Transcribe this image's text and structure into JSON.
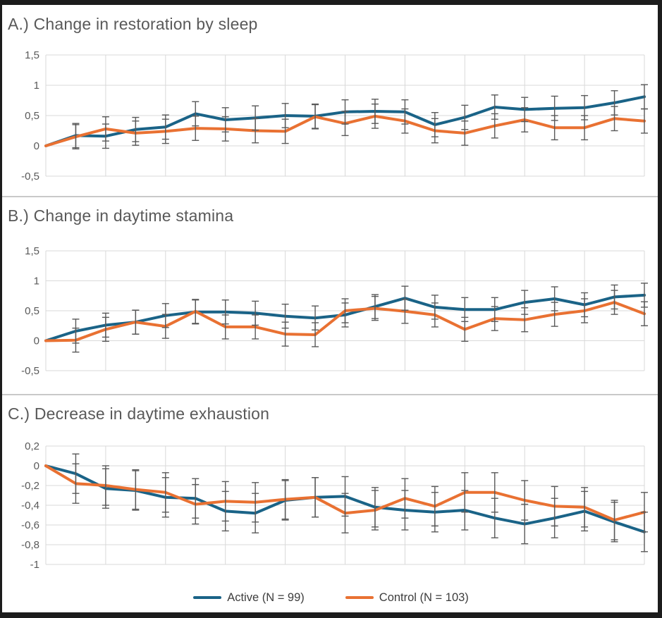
{
  "figure": {
    "background": "#ffffff",
    "frame_border_color": "#1c1c1c",
    "divider_color": "#c9c9c9"
  },
  "palette": {
    "active": "#1A6387",
    "control": "#E97132",
    "error_bar": "#595959",
    "gridline": "#d9d9d9",
    "tick_label": "#595959",
    "title": "#595959",
    "legend_text": "#3d3d3d"
  },
  "legend": {
    "items": [
      {
        "key": "active",
        "label": "Active (N = 99)"
      },
      {
        "key": "control",
        "label": "Control (N = 103)"
      }
    ]
  },
  "chart_data": [
    {
      "id": "A",
      "type": "line",
      "title": "A.) Change in restoration by sleep",
      "n_points": 21,
      "x_tick_labels": "none",
      "x_gridline_every_n_points": 2,
      "ylim": [
        -0.5,
        1.5
      ],
      "yticks": [
        {
          "v": 1.5,
          "label": "1,5"
        },
        {
          "v": 1.0,
          "label": "1"
        },
        {
          "v": 0.5,
          "label": "0,5"
        },
        {
          "v": 0.0,
          "label": "0"
        },
        {
          "v": -0.5,
          "label": "-0,5"
        }
      ],
      "error_bars": {
        "halfwidth": 0.2,
        "on_first_point": false
      },
      "series": [
        {
          "name": "Active (N = 99)",
          "color_key": "active",
          "values": [
            0,
            0.17,
            0.16,
            0.27,
            0.31,
            0.53,
            0.43,
            0.46,
            0.5,
            0.49,
            0.56,
            0.57,
            0.56,
            0.35,
            0.47,
            0.64,
            0.6,
            0.62,
            0.63,
            0.71,
            0.81
          ]
        },
        {
          "name": "Control (N = 103)",
          "color_key": "control",
          "values": [
            0,
            0.15,
            0.28,
            0.21,
            0.24,
            0.29,
            0.28,
            0.25,
            0.24,
            0.48,
            0.37,
            0.49,
            0.41,
            0.25,
            0.21,
            0.33,
            0.43,
            0.3,
            0.3,
            0.45,
            0.41
          ]
        }
      ]
    },
    {
      "id": "B",
      "type": "line",
      "title": "B.) Change in daytime stamina",
      "n_points": 21,
      "x_tick_labels": "none",
      "x_gridline_every_n_points": 2,
      "ylim": [
        -0.5,
        1.5
      ],
      "yticks": [
        {
          "v": 1.5,
          "label": "1,5"
        },
        {
          "v": 1.0,
          "label": "1"
        },
        {
          "v": 0.5,
          "label": "0,5"
        },
        {
          "v": 0.0,
          "label": "0"
        },
        {
          "v": -0.5,
          "label": "-0,5"
        }
      ],
      "error_bars": {
        "halfwidth": 0.2,
        "on_first_point": false
      },
      "series": [
        {
          "name": "Active (N = 99)",
          "color_key": "active",
          "values": [
            0,
            0.16,
            0.26,
            0.31,
            0.42,
            0.48,
            0.48,
            0.46,
            0.41,
            0.38,
            0.43,
            0.57,
            0.71,
            0.56,
            0.52,
            0.52,
            0.64,
            0.7,
            0.6,
            0.73,
            0.76
          ]
        },
        {
          "name": "Control (N = 103)",
          "color_key": "control",
          "values": [
            0,
            0.01,
            0.19,
            0.31,
            0.24,
            0.49,
            0.23,
            0.23,
            0.11,
            0.1,
            0.5,
            0.54,
            0.49,
            0.43,
            0.19,
            0.37,
            0.35,
            0.44,
            0.5,
            0.64,
            0.45
          ]
        }
      ]
    },
    {
      "id": "C",
      "type": "line",
      "title": "C.) Decrease in daytime exhaustion",
      "n_points": 21,
      "x_tick_labels": "none",
      "x_gridline_every_n_points": 2,
      "ylim": [
        -1.0,
        0.2
      ],
      "yticks": [
        {
          "v": 0.2,
          "label": "0,2"
        },
        {
          "v": 0.0,
          "label": "0"
        },
        {
          "v": -0.2,
          "label": "-0,2"
        },
        {
          "v": -0.4,
          "label": "-0,4"
        },
        {
          "v": -0.6,
          "label": "-0,6"
        },
        {
          "v": -0.8,
          "label": "-0,8"
        },
        {
          "v": -1.0,
          "label": "-1"
        }
      ],
      "error_bars": {
        "halfwidth": 0.2,
        "on_first_point": false
      },
      "series": [
        {
          "name": "Active (N = 99)",
          "color_key": "active",
          "values": [
            0,
            -0.08,
            -0.23,
            -0.25,
            -0.32,
            -0.33,
            -0.46,
            -0.48,
            -0.35,
            -0.32,
            -0.31,
            -0.42,
            -0.45,
            -0.47,
            -0.45,
            -0.53,
            -0.59,
            -0.53,
            -0.46,
            -0.57,
            -0.67
          ]
        },
        {
          "name": "Control (N = 103)",
          "color_key": "control",
          "values": [
            0,
            -0.18,
            -0.2,
            -0.24,
            -0.27,
            -0.39,
            -0.36,
            -0.37,
            -0.34,
            -0.32,
            -0.48,
            -0.45,
            -0.33,
            -0.41,
            -0.27,
            -0.27,
            -0.35,
            -0.41,
            -0.42,
            -0.55,
            -0.47
          ]
        }
      ]
    }
  ]
}
